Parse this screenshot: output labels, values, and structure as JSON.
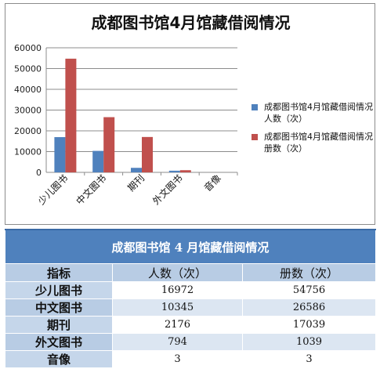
{
  "chart_data": {
    "type": "bar",
    "title": "成都图书馆4月馆藏借阅情况",
    "categories": [
      "少儿图书",
      "中文图书",
      "期刊",
      "外文图书",
      "音像"
    ],
    "series": [
      {
        "name": "成都图书馆4月馆藏借阅情况 人数（次）",
        "color": "#4f81bd",
        "values": [
          16972,
          10345,
          2176,
          794,
          3
        ]
      },
      {
        "name": "成都图书馆4月馆藏借阅情况 册数（次）",
        "color": "#c0504d",
        "values": [
          54756,
          26586,
          17039,
          1039,
          3
        ]
      }
    ],
    "ylim": [
      0,
      60000
    ],
    "yticks": [
      0,
      10000,
      20000,
      30000,
      40000,
      50000,
      60000
    ],
    "xlabel": "",
    "ylabel": "",
    "grid": true,
    "legend_position": "right"
  },
  "table": {
    "title": "成都图书馆 4 月馆藏借阅情况",
    "headers": [
      "指标",
      "人数（次）",
      "册数（次）"
    ],
    "rows": [
      [
        "少儿图书",
        "16972",
        "54756"
      ],
      [
        "中文图书",
        "10345",
        "26586"
      ],
      [
        "期刊",
        "2176",
        "17039"
      ],
      [
        "外文图书",
        "794",
        "1039"
      ],
      [
        "音像",
        "3",
        "3"
      ]
    ]
  }
}
